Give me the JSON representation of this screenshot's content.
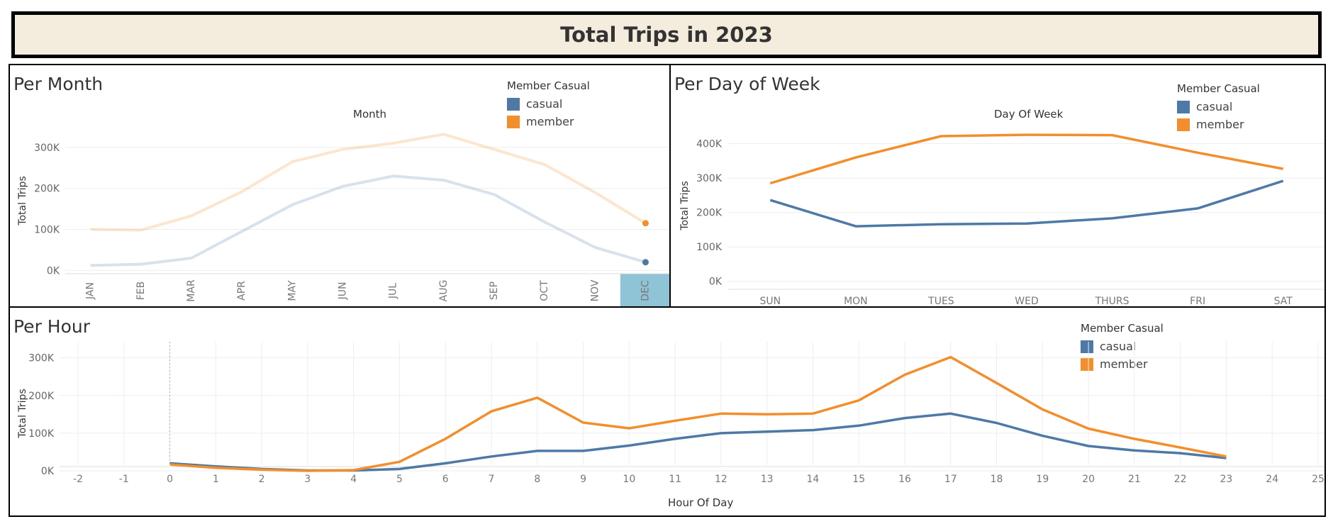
{
  "header": {
    "title": "Total Trips in 2023"
  },
  "colors": {
    "casual": "#4e79a7",
    "member": "#f28e2b",
    "highlight": "#8ec4d6",
    "grid": "#eeeeee"
  },
  "chart_data": [
    {
      "id": "per-month",
      "type": "line",
      "title": "Per Month",
      "axis_title": "Month",
      "ylabel": "Total Trips",
      "legend": {
        "title": "Member Casual",
        "items": [
          "casual",
          "member"
        ],
        "placement": "top-right"
      },
      "categories": [
        "JAN",
        "FEB",
        "MAR",
        "APR",
        "MAY",
        "JUN",
        "JUL",
        "AUG",
        "SEP",
        "OCT",
        "NOV",
        "DEC"
      ],
      "series": [
        {
          "name": "casual",
          "values": [
            12000,
            15000,
            30000,
            95000,
            160000,
            205000,
            230000,
            220000,
            185000,
            118000,
            56000,
            20000
          ]
        },
        {
          "name": "member",
          "values": [
            100000,
            98000,
            133000,
            192000,
            265000,
            295000,
            310000,
            332000,
            295000,
            258000,
            190000,
            115000
          ]
        }
      ],
      "highlighted_category": "DEC",
      "yticks": [
        0,
        100000,
        200000,
        300000
      ],
      "ytick_labels": [
        "0K",
        "100K",
        "200K",
        "300K"
      ],
      "ylim": [
        -15000,
        355000
      ],
      "grid": true
    },
    {
      "id": "per-day",
      "type": "line",
      "title": "Per Day of Week",
      "axis_title": "Day Of Week",
      "ylabel": "Total Trips",
      "legend": {
        "title": "Member Casual",
        "items": [
          "casual",
          "member"
        ],
        "placement": "top-right"
      },
      "categories": [
        "SUN",
        "MON",
        "TUES",
        "WED",
        "THURS",
        "FRI",
        "SAT"
      ],
      "series": [
        {
          "name": "casual",
          "values": [
            236000,
            160000,
            166000,
            168000,
            183000,
            212000,
            292000
          ]
        },
        {
          "name": "member",
          "values": [
            285000,
            360000,
            422000,
            426000,
            425000,
            374000,
            327000
          ]
        }
      ],
      "yticks": [
        0,
        100000,
        200000,
        300000,
        400000
      ],
      "ytick_labels": [
        "0K",
        "100K",
        "200K",
        "300K",
        "400K"
      ],
      "ylim": [
        -15000,
        455000
      ],
      "grid": true
    },
    {
      "id": "per-hour",
      "type": "line",
      "title": "Per Hour",
      "xlabel": "Hour Of Day",
      "ylabel": "Total Trips",
      "legend": {
        "title": "Member Casual",
        "items": [
          "casual",
          "member"
        ],
        "placement": "top-right"
      },
      "x": [
        0,
        1,
        2,
        3,
        4,
        5,
        6,
        7,
        8,
        9,
        10,
        11,
        12,
        13,
        14,
        15,
        16,
        17,
        18,
        19,
        20,
        21,
        22,
        23
      ],
      "xticks": [
        -2,
        -1,
        0,
        1,
        2,
        3,
        4,
        5,
        6,
        7,
        8,
        9,
        10,
        11,
        12,
        13,
        14,
        15,
        16,
        17,
        18,
        19,
        20,
        21,
        22,
        23,
        24,
        25
      ],
      "xlim": [
        -2,
        25
      ],
      "series": [
        {
          "name": "casual",
          "values": [
            20000,
            12000,
            5000,
            1000,
            1000,
            5000,
            20000,
            38000,
            53000,
            53000,
            67000,
            85000,
            100000,
            104000,
            108000,
            120000,
            140000,
            152000,
            127000,
            93000,
            66000,
            54000,
            47000,
            34000
          ]
        },
        {
          "name": "member",
          "values": [
            17000,
            8000,
            3000,
            0,
            2000,
            24000,
            85000,
            158000,
            194000,
            128000,
            113000,
            133000,
            152000,
            150000,
            152000,
            187000,
            255000,
            302000,
            233000,
            163000,
            112000,
            85000,
            62000,
            38000
          ]
        }
      ],
      "yticks": [
        0,
        100000,
        200000,
        300000
      ],
      "ytick_labels": [
        "0K",
        "100K",
        "200K",
        "300K"
      ],
      "ylim": [
        -15000,
        320000
      ],
      "grid": true
    }
  ]
}
